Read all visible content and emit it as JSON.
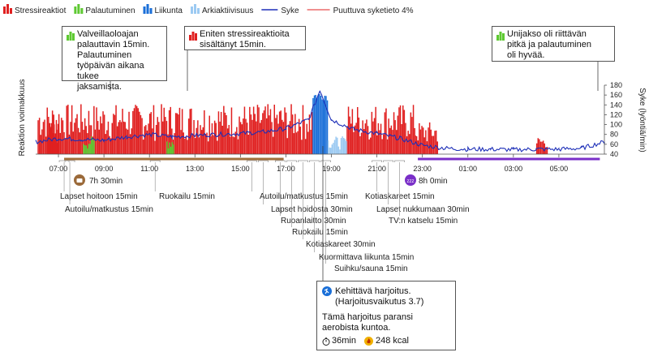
{
  "legend": [
    {
      "label": "Stressireaktiot",
      "color": "#e02020",
      "kind": "bar"
    },
    {
      "label": "Palautuminen",
      "color": "#5ec932",
      "kind": "bar"
    },
    {
      "label": "Liikunta",
      "color": "#1a6fd8",
      "kind": "bar"
    },
    {
      "label": "Arkiaktiivisuus",
      "color": "#9ccaf2",
      "kind": "bar"
    },
    {
      "label": "Syke",
      "color": "#1d2fb8",
      "kind": "line"
    },
    {
      "label": "Puuttuva syketieto 4%",
      "color": "#e02020",
      "kind": "thin-line"
    }
  ],
  "callouts": {
    "morning": {
      "text": "Valveillaoloajan\npalauttavin 15min.\nPalautuminen\ntyöpäivän aikana tukee\njaksamista.",
      "icon": "green-bar-icon"
    },
    "stress": {
      "text": "Eniten stressireaktioita\nsisältänyt 15min.",
      "icon": "red-bar-icon"
    },
    "sleep": {
      "text": "Unijakso oli riittävän\npitkä ja palautuminen\noli hyvää.",
      "icon": "green-bar-icon"
    }
  },
  "work_duration": "7h 30min",
  "sleep_duration": "8h 0min",
  "exercise": {
    "title": "Kehittävä harjoitus.",
    "effect": "(Harjoitusvaikutus 3.7)",
    "desc_line1": "Tämä harjoitus paransi",
    "desc_line2": "aerobista kuntoa.",
    "duration": "36min",
    "energy": "248 kcal"
  },
  "events": [
    {
      "label": "Lapset hoitoon 15min",
      "time": "07:15"
    },
    {
      "label": "Autoilu/matkustus 15min",
      "time": "07:30"
    },
    {
      "label": "Ruokailu 15min",
      "time": "11:15"
    },
    {
      "label": "Autoilu/matkustus 15min",
      "time": "15:30"
    },
    {
      "label": "Lapset hoidosta 30min",
      "time": "16:00"
    },
    {
      "label": "Ruoanlaitto 30min",
      "time": "16:45"
    },
    {
      "label": "Ruokailu 15min",
      "time": "17:15"
    },
    {
      "label": "Kotiaskareet 30min",
      "time": "17:45"
    },
    {
      "label": "Kuormittava liikunta 15min",
      "time": "18:15"
    },
    {
      "label": "Suihku/sauna 15min",
      "time": "18:45"
    },
    {
      "label": "Kotiaskareet 15min",
      "time": "21:00"
    },
    {
      "label": "Lapset nukkumaan 30min",
      "time": "21:30"
    },
    {
      "label": "TV:n katselu 15min",
      "time": "22:00"
    }
  ],
  "chart_data": {
    "type": "bar",
    "title": "",
    "ylabel_left": "Reaktion voimakkuus",
    "ylabel_right": "Syke (lyöntiä/min)",
    "x_ticks": [
      "07:00",
      "09:00",
      "11:00",
      "13:00",
      "15:00",
      "17:00",
      "19:00",
      "21:00",
      "23:00",
      "01:00",
      "03:00",
      "05:00"
    ],
    "x_range": [
      "06:00",
      "07:00 (+1)"
    ],
    "right_ticks": [
      40,
      60,
      80,
      100,
      120,
      140,
      160,
      180
    ],
    "right_ylim": [
      40,
      180
    ],
    "series": [
      {
        "name": "Stressireaktiot",
        "color": "#e02020",
        "segments": [
          {
            "from": "06:05",
            "to": "18:10",
            "level": "high"
          },
          {
            "from": "19:40",
            "to": "22:40",
            "level": "high"
          },
          {
            "from": "22:40",
            "to": "23:40",
            "level": "medium"
          },
          {
            "from": "04:00",
            "to": "04:30",
            "level": "low"
          },
          {
            "from": "06:30",
            "to": "07:00",
            "level": "medium"
          }
        ]
      },
      {
        "name": "Palautuminen",
        "color": "#5ec932",
        "segments": [
          {
            "from": "08:05",
            "to": "08:35",
            "level": "low"
          },
          {
            "from": "11:45",
            "to": "12:05",
            "level": "low"
          },
          {
            "from": "23:40",
            "to": "06:30",
            "level": "high"
          }
        ]
      },
      {
        "name": "Liikunta",
        "color": "#1a6fd8",
        "segments": [
          {
            "from": "18:10",
            "to": "18:50",
            "level": "peak"
          }
        ]
      },
      {
        "name": "Arkiaktiivisuus",
        "color": "#9ccaf2",
        "segments": [
          {
            "from": "18:50",
            "to": "19:40",
            "level": "low"
          }
        ]
      },
      {
        "name": "Syke",
        "color": "#1d2fb8",
        "points": [
          [
            "06:00",
            65
          ],
          [
            "07:00",
            72
          ],
          [
            "08:00",
            70
          ],
          [
            "09:00",
            68
          ],
          [
            "10:00",
            75
          ],
          [
            "11:00",
            80
          ],
          [
            "12:00",
            75
          ],
          [
            "13:00",
            78
          ],
          [
            "14:00",
            80
          ],
          [
            "15:00",
            82
          ],
          [
            "16:00",
            85
          ],
          [
            "17:00",
            92
          ],
          [
            "18:00",
            110
          ],
          [
            "18:30",
            170
          ],
          [
            "19:00",
            110
          ],
          [
            "20:00",
            90
          ],
          [
            "21:00",
            82
          ],
          [
            "22:00",
            72
          ],
          [
            "23:00",
            58
          ],
          [
            "00:00",
            52
          ],
          [
            "01:00",
            50
          ],
          [
            "02:00",
            50
          ],
          [
            "03:00",
            49
          ],
          [
            "04:00",
            50
          ],
          [
            "05:00",
            50
          ],
          [
            "06:00 (+1)",
            52
          ],
          [
            "07:00 (+1)",
            65
          ]
        ]
      }
    ]
  }
}
